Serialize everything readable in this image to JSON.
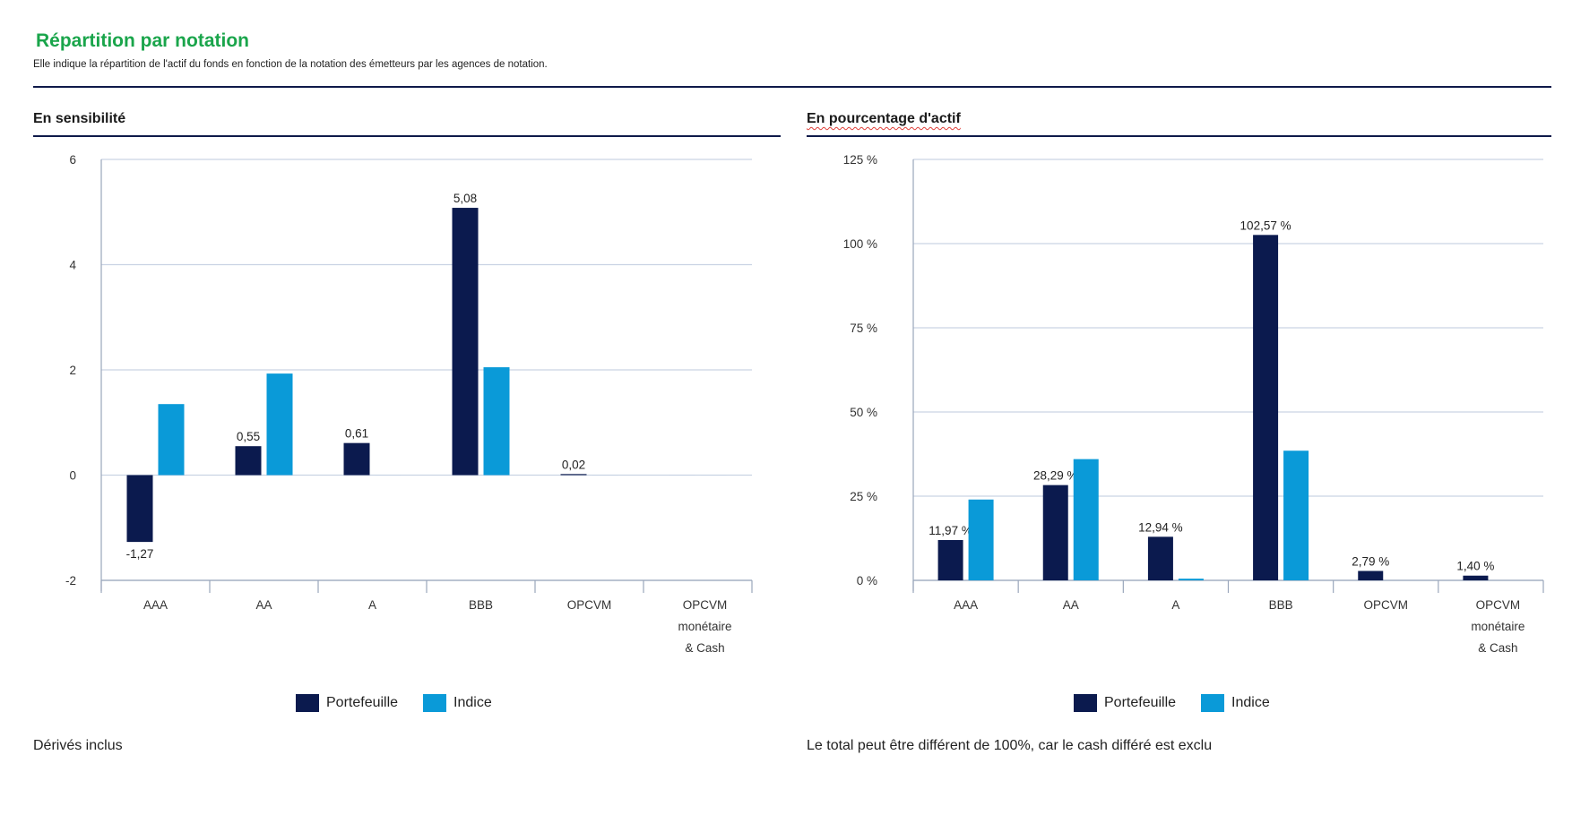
{
  "header": {
    "title": "Répartition par notation",
    "subtitle": "Elle indique la répartition de l'actif du fonds en fonction de la notation des émetteurs par les agences de notation."
  },
  "colors": {
    "portefeuille": "#0b1a4e",
    "indice": "#0a9ad8",
    "grid": "#c9d3e3",
    "axis": "#9aa6bb"
  },
  "notes": {
    "left": "Dérivés inclus",
    "right": "Le total peut être différent de 100%, car le cash différé est exclu"
  },
  "chart_data": [
    {
      "type": "bar",
      "title": "En sensibilité",
      "categories": [
        [
          "AAA"
        ],
        [
          "AA"
        ],
        [
          "A"
        ],
        [
          "BBB"
        ],
        [
          "OPCVM"
        ],
        [
          "OPCVM",
          "monétaire",
          "& Cash"
        ]
      ],
      "series": [
        {
          "name": "Portefeuille",
          "values": [
            -1.27,
            0.55,
            0.61,
            5.08,
            0.02,
            0
          ],
          "labels": [
            "-1,27",
            "0,55",
            "0,61",
            "5,08",
            "0,02",
            ""
          ]
        },
        {
          "name": "Indice",
          "values": [
            1.35,
            1.93,
            0,
            2.05,
            0,
            0
          ]
        }
      ],
      "ylim": [
        -2,
        6
      ],
      "yticks": [
        -2,
        0,
        2,
        4,
        6
      ],
      "ytick_labels": [
        "-2",
        "0",
        "2",
        "4",
        "6"
      ],
      "grid": true,
      "legend": "bottom"
    },
    {
      "type": "bar",
      "title": "En pourcentage d'actif",
      "categories": [
        [
          "AAA"
        ],
        [
          "AA"
        ],
        [
          "A"
        ],
        [
          "BBB"
        ],
        [
          "OPCVM"
        ],
        [
          "OPCVM",
          "monétaire",
          "& Cash"
        ]
      ],
      "series": [
        {
          "name": "Portefeuille",
          "values": [
            11.97,
            28.29,
            12.94,
            102.57,
            2.79,
            1.4
          ],
          "labels": [
            "11,97 %",
            "28,29 %",
            "12,94 %",
            "102,57 %",
            "2,79 %",
            "1,40 %"
          ]
        },
        {
          "name": "Indice",
          "values": [
            24,
            36,
            0.5,
            38.5,
            0,
            0
          ]
        }
      ],
      "ylim": [
        0,
        125
      ],
      "yticks": [
        0,
        25,
        50,
        75,
        100,
        125
      ],
      "ytick_labels": [
        "0 %",
        "25 %",
        "50 %",
        "75 %",
        "100 %",
        "125 %"
      ],
      "grid": true,
      "legend": "bottom"
    }
  ]
}
